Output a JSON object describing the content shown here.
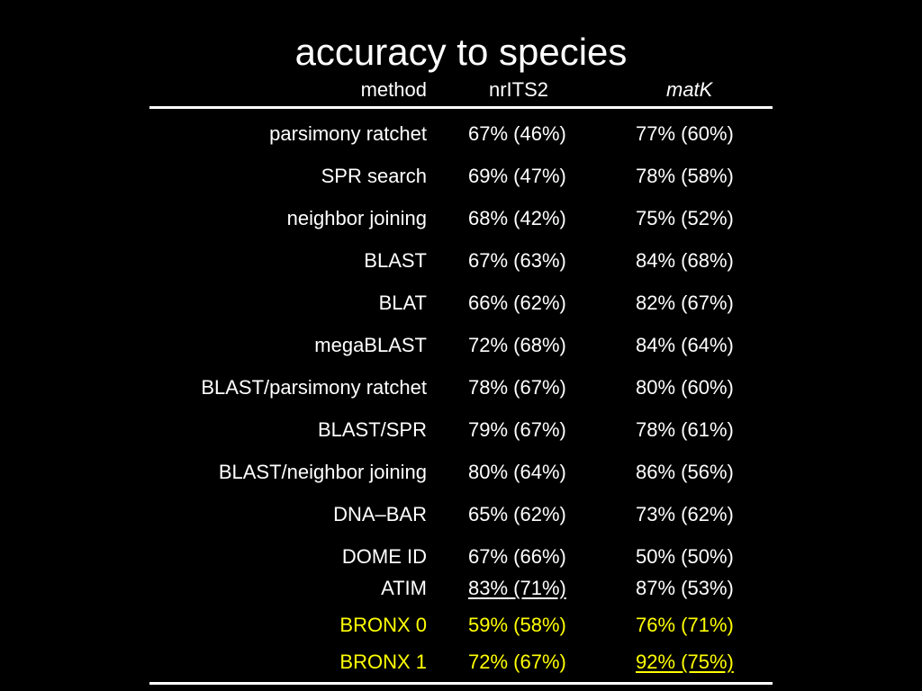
{
  "title": "accuracy to species",
  "columns": {
    "method": "method",
    "its2": "nrITS2",
    "matk": "matK"
  },
  "rows": [
    {
      "method": "parsimony ratchet",
      "its2": "67% (46%)",
      "matk": "77% (60%)"
    },
    {
      "method": "SPR search",
      "its2": "69% (47%)",
      "matk": "78% (58%)"
    },
    {
      "method": "neighbor joining",
      "its2": "68% (42%)",
      "matk": "75% (52%)"
    },
    {
      "method": "BLAST",
      "its2": "67% (63%)",
      "matk": "84% (68%)"
    },
    {
      "method": "BLAT",
      "its2": "66% (62%)",
      "matk": "82% (67%)"
    },
    {
      "method": "megaBLAST",
      "its2": "72% (68%)",
      "matk": "84% (64%)"
    },
    {
      "method": "BLAST/parsimony ratchet",
      "its2": "78% (67%)",
      "matk": "80% (60%)"
    },
    {
      "method": "BLAST/SPR",
      "its2": "79% (67%)",
      "matk": "78% (61%)"
    },
    {
      "method": "BLAST/neighbor joining",
      "its2": "80% (64%)",
      "matk": "86% (56%)"
    },
    {
      "method": "DNA–BAR",
      "its2": "65% (62%)",
      "matk": "73% (62%)"
    },
    {
      "method": "DOME ID",
      "its2": "67% (66%)",
      "matk": "50% (50%)"
    },
    {
      "method": "ATIM",
      "its2": "83% (71%)",
      "matk": "87% (53%)"
    },
    {
      "method": "BRONX 0",
      "its2": "59% (58%)",
      "matk": "76% (71%)"
    },
    {
      "method": "BRONX 1",
      "its2": "72% (67%)",
      "matk": "92% (75%)"
    }
  ],
  "colors": {
    "background": "#000000",
    "text": "#ffffff",
    "highlight": "#ffff00"
  }
}
